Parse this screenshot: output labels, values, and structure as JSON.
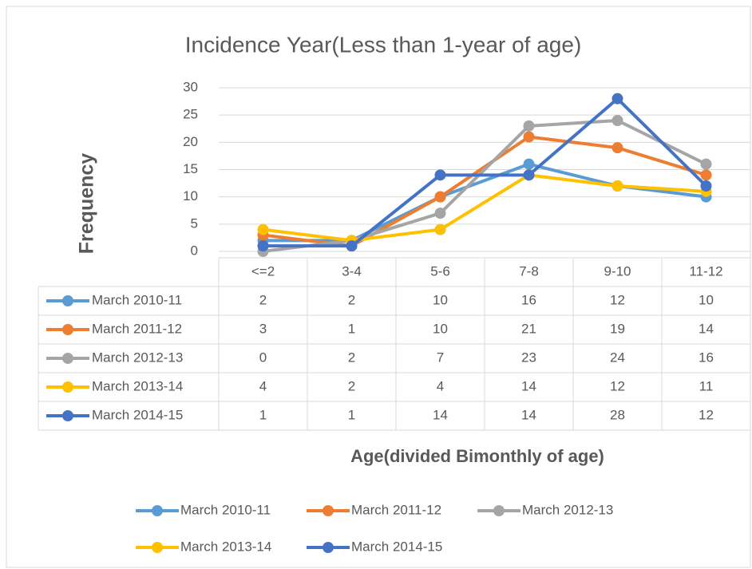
{
  "chart_data": {
    "type": "line",
    "title": "Incidence Year(Less than 1-year of age)",
    "x_label": "Age(divided Bimonthly of age)",
    "y_label": "Frequency",
    "categories": [
      "<=2",
      "3-4",
      "5-6",
      "7-8",
      "9-10",
      "11-12"
    ],
    "series": [
      {
        "name": "March 2010-11",
        "color": "#5b9bd5",
        "values": [
          2,
          2,
          10,
          16,
          12,
          10
        ]
      },
      {
        "name": "March 2011-12",
        "color": "#ed7d31",
        "values": [
          3,
          1,
          10,
          21,
          19,
          14
        ]
      },
      {
        "name": "March 2012-13",
        "color": "#a5a5a5",
        "values": [
          0,
          2,
          7,
          23,
          24,
          16
        ]
      },
      {
        "name": "March 2013-14",
        "color": "#ffc000",
        "values": [
          4,
          2,
          4,
          14,
          12,
          11
        ]
      },
      {
        "name": "March 2014-15",
        "color": "#4472c4",
        "values": [
          1,
          1,
          14,
          14,
          28,
          12
        ]
      }
    ],
    "ylim": [
      0,
      30
    ],
    "yticks": [
      0,
      5,
      10,
      15,
      20,
      25,
      30
    ],
    "grid": true,
    "data_table": true,
    "legend": "bottom"
  }
}
